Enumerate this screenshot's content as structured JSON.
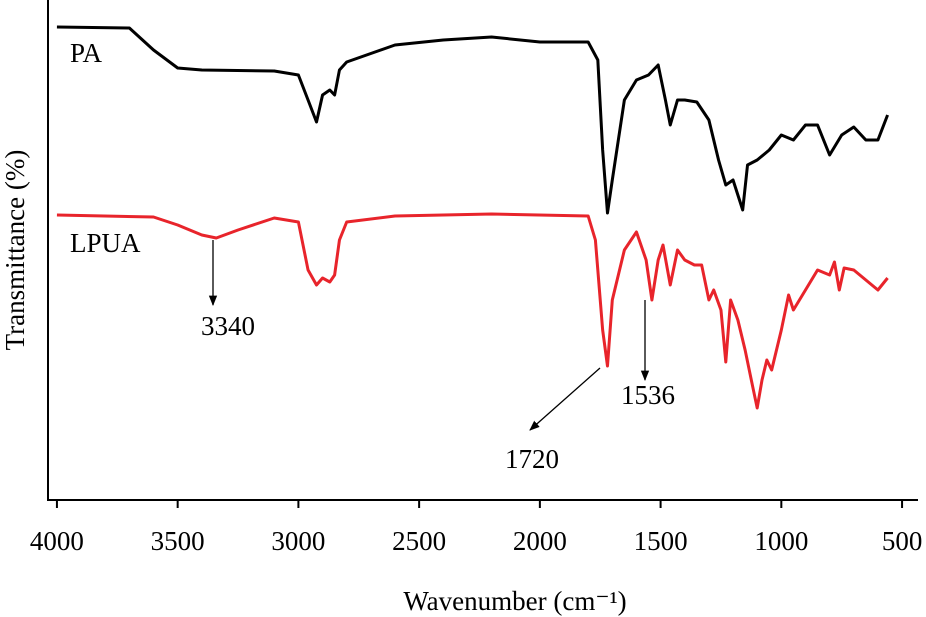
{
  "chart_data": {
    "type": "line",
    "x_label": "Wavenumber (cm⁻¹)",
    "y_label": "Transmittance (%)",
    "xlim": [
      4037,
      434
    ],
    "xticks": [
      4000,
      3500,
      3000,
      2500,
      2000,
      1500,
      1000,
      500
    ],
    "ylim": [
      0,
      100
    ],
    "annotations": [
      "3340",
      "1720",
      "1536"
    ],
    "series": [
      {
        "name": "PA",
        "color": "#000000",
        "x": [
          4000,
          3700,
          3600,
          3500,
          3400,
          3100,
          3000,
          2960,
          2925,
          2900,
          2870,
          2850,
          2830,
          2800,
          2600,
          2400,
          2200,
          2000,
          1800,
          1760,
          1740,
          1720,
          1700,
          1650,
          1600,
          1550,
          1510,
          1480,
          1460,
          1430,
          1400,
          1350,
          1300,
          1260,
          1230,
          1200,
          1160,
          1140,
          1100,
          1050,
          1000,
          950,
          900,
          850,
          800,
          750,
          700,
          650,
          600,
          560
        ],
        "values": [
          94.6,
          94.4,
          90,
          86.4,
          86,
          85.8,
          85,
          80,
          75.6,
          81,
          82,
          81,
          86,
          87.6,
          91,
          92,
          92.6,
          91.6,
          91.6,
          88,
          70,
          57.4,
          64,
          80,
          84,
          85,
          87,
          80,
          75,
          80,
          80,
          79.6,
          76,
          68,
          63,
          64,
          58,
          67,
          68,
          70,
          73,
          72,
          75,
          75,
          69,
          73,
          74.6,
          72,
          72,
          77
        ]
      },
      {
        "name": "LPUA",
        "color": "#e8242b",
        "x": [
          4000,
          3600,
          3500,
          3400,
          3340,
          3250,
          3100,
          3000,
          2960,
          2925,
          2900,
          2870,
          2850,
          2830,
          2800,
          2600,
          2200,
          1800,
          1770,
          1740,
          1720,
          1700,
          1650,
          1600,
          1560,
          1536,
          1510,
          1490,
          1460,
          1430,
          1400,
          1360,
          1330,
          1300,
          1280,
          1250,
          1230,
          1210,
          1180,
          1150,
          1120,
          1100,
          1080,
          1060,
          1040,
          1000,
          970,
          950,
          900,
          850,
          800,
          780,
          760,
          740,
          700,
          650,
          600,
          560
        ],
        "values": [
          57,
          56.6,
          55,
          53,
          52.4,
          54,
          56.4,
          55.6,
          46,
          43,
          44.4,
          43.6,
          45,
          52,
          55.6,
          56.8,
          57.2,
          56.8,
          52,
          34,
          26.8,
          40,
          50,
          53.6,
          48,
          40,
          48,
          51,
          43,
          50,
          48,
          47,
          47,
          40,
          42,
          38,
          27.6,
          40,
          36,
          30,
          23,
          18.4,
          24,
          28,
          26,
          34,
          41,
          38,
          42,
          46,
          45,
          47.6,
          42,
          46.4,
          46,
          44,
          42,
          44.4
        ]
      }
    ]
  }
}
